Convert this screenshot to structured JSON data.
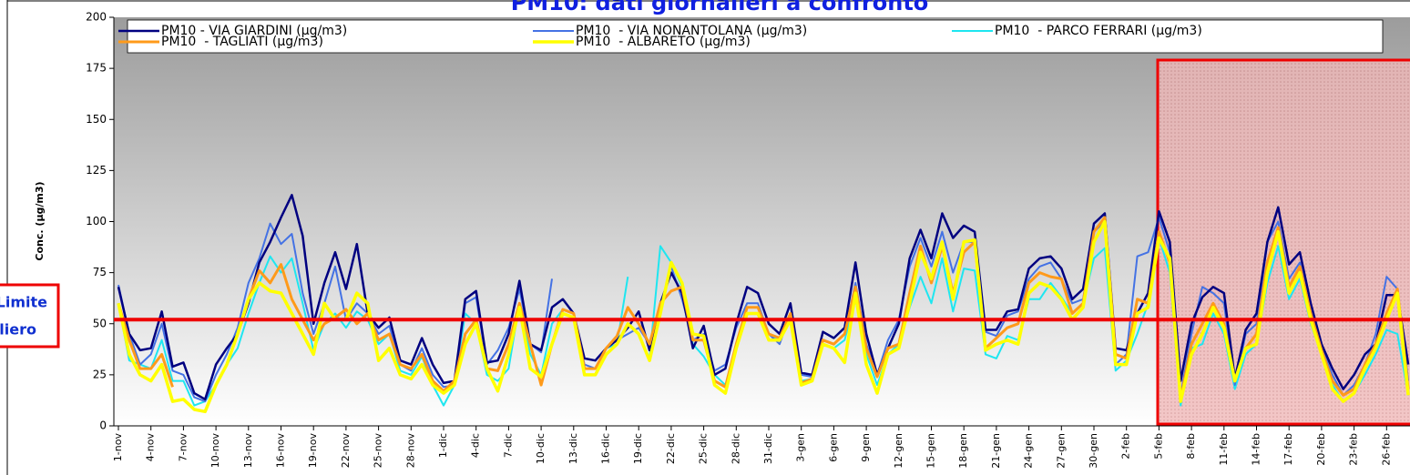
{
  "chart_data": {
    "type": "line",
    "title": "PM10: dati giornalieri a confronto",
    "y_label": "Conc. (µg/m3)",
    "annotation": [
      "Limite",
      "giornaliero"
    ],
    "limit_value": 52,
    "ylim": [
      0,
      200
    ],
    "yticks": [
      0,
      25,
      50,
      75,
      100,
      125,
      150,
      175,
      200
    ],
    "categories": [
      "1-nov",
      null,
      null,
      "4-nov",
      null,
      null,
      "7-nov",
      null,
      null,
      "10-nov",
      null,
      null,
      "13-nov",
      null,
      null,
      "16-nov",
      null,
      null,
      "19-nov",
      null,
      null,
      "22-nov",
      null,
      null,
      "25-nov",
      null,
      null,
      "28-nov",
      null,
      null,
      "1-dic",
      null,
      null,
      "4-dic",
      null,
      null,
      "7-dic",
      null,
      null,
      "10-dic",
      null,
      null,
      "13-dic",
      null,
      null,
      "16-dic",
      null,
      null,
      "19-dic",
      null,
      null,
      "22-dic",
      null,
      null,
      "25-dic",
      null,
      null,
      "28-dic",
      null,
      null,
      "31-dic",
      null,
      null,
      "3-gen",
      null,
      null,
      "6-gen",
      null,
      null,
      "9-gen",
      null,
      null,
      "12-gen",
      null,
      null,
      "15-gen",
      null,
      null,
      "18-gen",
      null,
      null,
      "21-gen",
      null,
      null,
      "24-gen",
      null,
      null,
      "27-gen",
      null,
      null,
      "30-gen",
      null,
      null,
      "2-feb",
      null,
      null,
      "5-feb",
      null,
      null,
      "8-feb",
      null,
      null,
      "11-feb",
      null,
      null,
      "14-feb",
      null,
      null,
      "17-feb",
      null,
      null,
      "20-feb",
      null,
      null,
      "23-feb",
      null,
      null,
      "26-feb",
      null,
      null
    ],
    "series": [
      {
        "name": "PM10 - VIA GIARDINI (µg/m3)",
        "color": "#000080",
        "width": 2.5,
        "values": [
          68,
          45,
          37,
          38,
          56,
          29,
          31,
          16,
          13,
          30,
          38,
          45,
          60,
          80,
          90,
          102,
          113,
          93,
          50,
          70,
          85,
          67,
          89,
          55,
          48,
          53,
          32,
          30,
          43,
          30,
          21,
          22,
          62,
          66,
          31,
          32,
          45,
          71,
          40,
          37,
          58,
          62,
          55,
          33,
          32,
          38,
          42,
          48,
          56,
          37,
          60,
          75,
          65,
          38,
          49,
          25,
          28,
          50,
          68,
          65,
          50,
          45,
          60,
          26,
          25,
          46,
          43,
          48,
          80,
          45,
          25,
          38,
          50,
          82,
          96,
          82,
          104,
          92,
          98,
          95,
          47,
          47,
          56,
          57,
          77,
          82,
          83,
          77,
          62,
          67,
          99,
          104,
          38,
          37,
          55,
          65,
          105,
          90,
          22,
          50,
          63,
          68,
          65,
          23,
          47,
          55,
          90,
          107,
          79,
          85,
          60,
          40,
          28,
          18,
          25,
          35,
          40,
          64,
          64,
          30
        ]
      },
      {
        "name": "PM10  - VIA NONANTOLANA (µg/m3)",
        "color": "#4472e4",
        "width": 2,
        "values": [
          69,
          45,
          30,
          35,
          50,
          27,
          25,
          14,
          12,
          25,
          35,
          48,
          70,
          82,
          99,
          89,
          94,
          65,
          45,
          60,
          78,
          52,
          60,
          55,
          45,
          49,
          30,
          27,
          38,
          25,
          19,
          20,
          60,
          63,
          30,
          37,
          48,
          67,
          40,
          36,
          72,
          null,
          55,
          30,
          28,
          38,
          42,
          45,
          48,
          40,
          58,
          78,
          62,
          42,
          45,
          27,
          30,
          48,
          60,
          60,
          45,
          40,
          55,
          25,
          24,
          42,
          40,
          45,
          70,
          40,
          25,
          42,
          52,
          78,
          92,
          78,
          95,
          75,
          90,
          90,
          46,
          44,
          54,
          56,
          72,
          78,
          80,
          72,
          60,
          62,
          95,
          100,
          30,
          35,
          83,
          85,
          102,
          85,
          15,
          45,
          68,
          65,
          60,
          20,
          45,
          50,
          90,
          100,
          72,
          80,
          55,
          38,
          25,
          15,
          20,
          30,
          45,
          73,
          67,
          22
        ]
      },
      {
        "name": "PM10  - PARCO FERRARI (µg/m3)",
        "color": "#1ee6f0",
        "width": 2,
        "values": [
          60,
          32,
          30,
          28,
          42,
          22,
          22,
          10,
          12,
          20,
          30,
          38,
          55,
          70,
          83,
          75,
          82,
          60,
          37,
          50,
          55,
          48,
          56,
          52,
          40,
          45,
          27,
          25,
          34,
          20,
          10,
          20,
          55,
          50,
          25,
          22,
          28,
          60,
          35,
          25,
          50,
          57,
          55,
          28,
          28,
          38,
          40,
          73,
          null,
          33,
          88,
          80,
          68,
          40,
          34,
          25,
          20,
          40,
          55,
          55,
          45,
          42,
          52,
          22,
          23,
          40,
          38,
          42,
          62,
          35,
          20,
          35,
          40,
          58,
          73,
          60,
          82,
          56,
          77,
          76,
          35,
          33,
          44,
          42,
          62,
          62,
          70,
          63,
          55,
          60,
          82,
          87,
          27,
          32,
          45,
          60,
          92,
          75,
          10,
          38,
          40,
          55,
          45,
          18,
          35,
          40,
          70,
          88,
          62,
          72,
          50,
          35,
          20,
          12,
          16,
          25,
          35,
          47,
          45,
          15
        ]
      },
      {
        "name": "PM10  - TAGLIATI (µg/m3)",
        "color": "#ff9a1a",
        "width": 3,
        "values": [
          60,
          42,
          28,
          28,
          35,
          19,
          null,
          null,
          null,
          null,
          null,
          45,
          62,
          76,
          70,
          79,
          62,
          52,
          42,
          50,
          53,
          57,
          50,
          55,
          42,
          45,
          30,
          28,
          35,
          22,
          17,
          22,
          45,
          52,
          28,
          27,
          40,
          60,
          40,
          20,
          40,
          57,
          55,
          28,
          28,
          38,
          44,
          58,
          50,
          40,
          60,
          66,
          68,
          42,
          42,
          22,
          19,
          40,
          58,
          58,
          45,
          43,
          55,
          21,
          23,
          42,
          40,
          45,
          68,
          38,
          24,
          38,
          40,
          65,
          88,
          70,
          88,
          65,
          85,
          90,
          38,
          43,
          48,
          50,
          70,
          75,
          73,
          72,
          55,
          60,
          95,
          102,
          35,
          33,
          62,
          60,
          95,
          80,
          13,
          40,
          50,
          60,
          50,
          22,
          38,
          45,
          80,
          97,
          68,
          78,
          55,
          37,
          22,
          15,
          18,
          30,
          40,
          55,
          67,
          18
        ]
      },
      {
        "name": "PM10  - ALBARETO (µg/m3)",
        "color": "#ffff00",
        "width": 3.5,
        "values": [
          60,
          35,
          25,
          22,
          30,
          12,
          13,
          8,
          7,
          20,
          30,
          45,
          62,
          70,
          66,
          65,
          55,
          45,
          35,
          60,
          52,
          52,
          65,
          60,
          32,
          38,
          25,
          23,
          30,
          20,
          16,
          20,
          40,
          50,
          28,
          17,
          35,
          58,
          28,
          24,
          40,
          55,
          53,
          25,
          25,
          35,
          40,
          50,
          45,
          32,
          55,
          80,
          70,
          45,
          44,
          20,
          16,
          38,
          55,
          55,
          42,
          42,
          52,
          20,
          22,
          40,
          38,
          31,
          65,
          30,
          16,
          35,
          38,
          60,
          85,
          72,
          90,
          62,
          90,
          91,
          37,
          40,
          42,
          40,
          65,
          70,
          68,
          62,
          52,
          58,
          90,
          100,
          30,
          30,
          55,
          58,
          92,
          82,
          12,
          35,
          45,
          58,
          48,
          22,
          38,
          40,
          75,
          95,
          65,
          75,
          52,
          35,
          18,
          12,
          16,
          28,
          38,
          52,
          65,
          15
        ]
      }
    ]
  }
}
